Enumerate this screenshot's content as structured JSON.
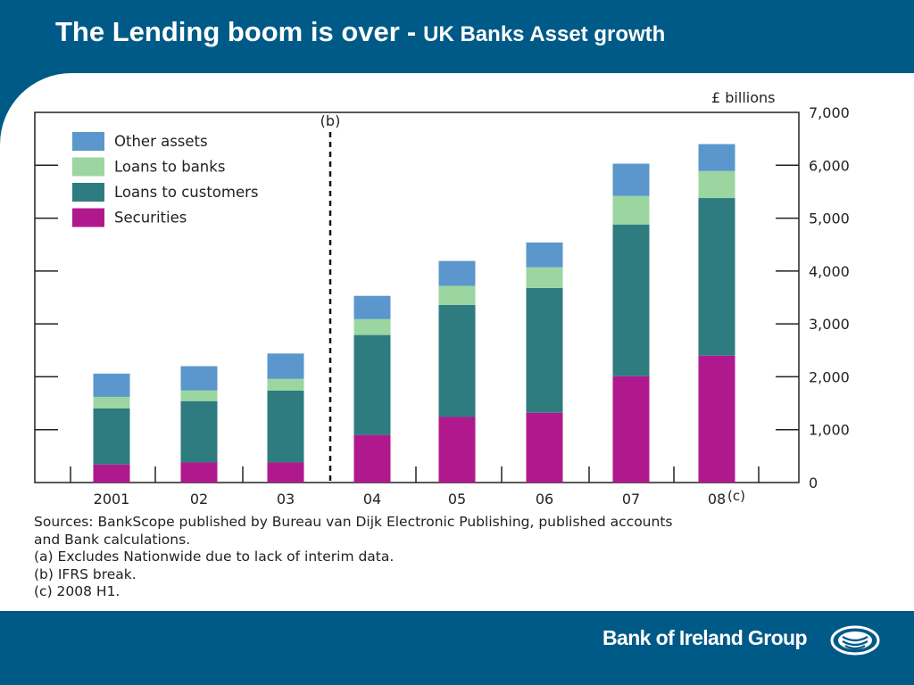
{
  "slide": {
    "title_main": "The Lending boom is over",
    "title_sep": "-",
    "title_sub": "UK Banks Asset growth"
  },
  "notes": [
    "Sources:  BankScope published by Bureau van Dijk Electronic Publishing, published accounts",
    "and Bank calculations.",
    "(a)  Excludes Nationwide due to lack of interim data.",
    "(b)  IFRS break.",
    "(c)  2008 H1."
  ],
  "brand": {
    "name": "Bank of Ireland Group",
    "logo_icon": "bank-of-ireland-logo-icon"
  },
  "colors": {
    "background": "#005a87",
    "securities": "#b0198e",
    "loans_to_customers": "#2e7b80",
    "loans_to_banks": "#9bd6a0",
    "other_assets": "#5b97cc"
  },
  "chart_data": {
    "type": "bar",
    "stacked": true,
    "unit_label": "£ billions",
    "categories": [
      "2001",
      "02",
      "03",
      "04",
      "05",
      "06",
      "07",
      "08"
    ],
    "category_suffix": {
      "08": "(c)"
    },
    "break_marker": {
      "label": "(b)",
      "between": [
        "03",
        "04"
      ]
    },
    "ylim": [
      0,
      7000
    ],
    "yticks": [
      0,
      1000,
      2000,
      3000,
      4000,
      5000,
      6000,
      7000
    ],
    "ytick_labels": [
      "0",
      "1,000",
      "2,000",
      "3,000",
      "4,000",
      "5,000",
      "6,000",
      "7,000"
    ],
    "y_axis_side": "right",
    "grid": false,
    "legend_position": "top-left",
    "series": [
      {
        "name": "Securities",
        "color": "#b0198e",
        "values": [
          340,
          380,
          380,
          900,
          1240,
          1320,
          2010,
          2400
        ]
      },
      {
        "name": "Loans to customers",
        "color": "#2e7b80",
        "values": [
          1060,
          1160,
          1360,
          1890,
          2120,
          2360,
          2870,
          2980
        ]
      },
      {
        "name": "Loans to banks",
        "color": "#9bd6a0",
        "values": [
          220,
          200,
          220,
          300,
          360,
          390,
          540,
          510
        ]
      },
      {
        "name": "Other assets",
        "color": "#5b97cc",
        "values": [
          440,
          460,
          480,
          440,
          470,
          470,
          610,
          510
        ]
      }
    ],
    "legend_order": [
      "Other assets",
      "Loans to banks",
      "Loans to customers",
      "Securities"
    ]
  }
}
